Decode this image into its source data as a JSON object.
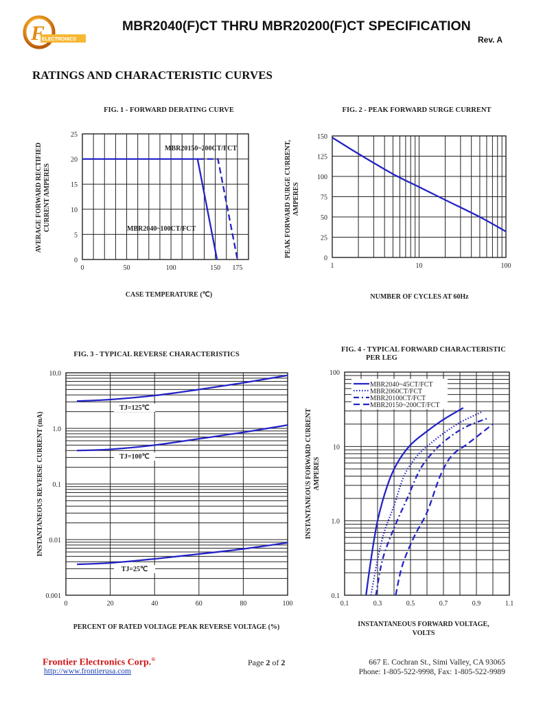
{
  "header": {
    "logo_text": "FRONTIER ELECTRONICS",
    "title": "MBR2040(F)CT THRU MBR20200(F)CT SPECIFICATION",
    "revision": "Rev. A"
  },
  "section_title": "RATINGS AND CHARACTERISTIC CURVES",
  "colors": {
    "curve": "#2323c8",
    "grid": "#222222",
    "company": "#d01818",
    "link": "#1a3fb0"
  },
  "chart_data": [
    {
      "id": "fig1",
      "type": "line",
      "title": "FIG. 1 - FORWARD DERATING CURVE",
      "xlabel": "CASE TEMPERATURE (℃)",
      "ylabel": [
        "AVERAGE FORWARD RECTIFIED",
        "CURRENT AMPERES"
      ],
      "xscale": "linear",
      "yscale": "linear",
      "xlim": [
        0,
        187.5
      ],
      "ylim": [
        0,
        25
      ],
      "xticks": [
        0,
        50,
        100,
        150,
        175
      ],
      "xtick_labels": [
        "0",
        "50",
        "100",
        "150",
        "175"
      ],
      "yticks": [
        0,
        5,
        10,
        15,
        20,
        25
      ],
      "ytick_labels": [
        "0",
        "5",
        "10",
        "15",
        "20",
        "25"
      ],
      "grid": true,
      "series": [
        {
          "name": "MBR2040~100CT/FCT",
          "style": "solid",
          "x": [
            0,
            130,
            152
          ],
          "y": [
            20,
            20,
            0
          ]
        },
        {
          "name": "MBR20150~200CT/FCT",
          "style": "dashed",
          "x": [
            130,
            153,
            175
          ],
          "y": [
            20,
            20,
            0
          ]
        }
      ]
    },
    {
      "id": "fig2",
      "type": "line",
      "title": "FIG. 2 - PEAK FORWARD SURGE CURRENT",
      "xlabel": "NUMBER OF CYCLES AT 60Hz",
      "ylabel": [
        "PEAK FORWARD SURGE CURRENT,",
        "AMPERES"
      ],
      "xscale": "log",
      "yscale": "linear",
      "xlim": [
        1,
        100
      ],
      "ylim": [
        0,
        150
      ],
      "xticks": [
        1,
        10,
        100
      ],
      "xtick_labels": [
        "1",
        "10",
        "100"
      ],
      "yticks": [
        0,
        25,
        50,
        75,
        100,
        125,
        150
      ],
      "ytick_labels": [
        "0",
        "25",
        "50",
        "75",
        "100",
        "125",
        "150"
      ],
      "grid": true,
      "series": [
        {
          "style": "solid",
          "x": [
            1,
            2,
            5,
            10,
            20,
            50,
            100
          ],
          "y": [
            148,
            128,
            103,
            87,
            71,
            50,
            32
          ]
        }
      ]
    },
    {
      "id": "fig3",
      "type": "line",
      "title": "FIG. 3 - TYPICAL REVERSE CHARACTERISTICS",
      "xlabel": "PERCENT OF RATED VOLTAGE PEAK REVERSE VOLTAGE (%)",
      "ylabel": [
        "INSTANTANEOUS REVERSE CURRENT (mA)"
      ],
      "xscale": "linear",
      "yscale": "log",
      "xlim": [
        0,
        100
      ],
      "ylim": [
        0.001,
        10
      ],
      "xticks": [
        0,
        20,
        40,
        60,
        80,
        100
      ],
      "xtick_labels": [
        "0",
        "20",
        "40",
        "60",
        "80",
        "100"
      ],
      "yticks": [
        0.001,
        0.01,
        0.1,
        1,
        10
      ],
      "ytick_labels": [
        "0.001",
        "0.01",
        "0.1",
        "1.0",
        "10.0"
      ],
      "grid": true,
      "series": [
        {
          "name": "TJ=125℃",
          "style": "solid",
          "x": [
            5,
            20,
            40,
            60,
            80,
            100
          ],
          "y": [
            3.1,
            3.3,
            3.9,
            5.0,
            6.6,
            9.0
          ]
        },
        {
          "name": "TJ=100℃",
          "style": "solid",
          "x": [
            5,
            20,
            40,
            60,
            80,
            100
          ],
          "y": [
            0.4,
            0.42,
            0.5,
            0.65,
            0.85,
            1.15
          ]
        },
        {
          "name": "TJ=25℃",
          "style": "solid",
          "x": [
            5,
            20,
            40,
            60,
            80,
            100
          ],
          "y": [
            0.0036,
            0.0038,
            0.0045,
            0.0055,
            0.0068,
            0.0088
          ]
        }
      ]
    },
    {
      "id": "fig4",
      "type": "line",
      "title": [
        "FIG. 4 - TYPICAL FORWARD CHARACTERISTIC",
        "PER LEG"
      ],
      "xlabel": [
        "INSTANTANEOUS FORWARD VOLTAGE,",
        "VOLTS"
      ],
      "ylabel": [
        "INSTANTANEOUS FORWARD CURRENT",
        "AMPERES"
      ],
      "xscale": "linear",
      "yscale": "log",
      "xlim": [
        0.1,
        1.1
      ],
      "ylim": [
        0.1,
        100
      ],
      "xticks": [
        0.1,
        0.3,
        0.5,
        0.7,
        0.9,
        1.1
      ],
      "xtick_labels": [
        "0.1",
        "0.3",
        "0.5",
        "0.7",
        "0.9",
        "1.1"
      ],
      "yticks": [
        0.1,
        1,
        10,
        100
      ],
      "ytick_labels": [
        "0.1",
        "1.0",
        "10",
        "100"
      ],
      "grid": true,
      "legend": "top-left",
      "series": [
        {
          "name": "MBR2040~45CT/FCT",
          "style": "solid",
          "x": [
            0.23,
            0.26,
            0.3,
            0.36,
            0.42,
            0.5,
            0.6,
            0.7,
            0.82
          ],
          "y": [
            0.1,
            0.3,
            1,
            3,
            6,
            10.5,
            16,
            23,
            33
          ]
        },
        {
          "name": "MBR2060CT/FCT",
          "style": "dotted",
          "x": [
            0.26,
            0.3,
            0.34,
            0.4,
            0.46,
            0.53,
            0.6,
            0.7,
            0.8,
            0.93
          ],
          "y": [
            0.1,
            0.3,
            0.7,
            1.6,
            4,
            7,
            10,
            15,
            21,
            29
          ]
        },
        {
          "name": "MBR20100CT/FCT",
          "style": "dashdot",
          "x": [
            0.29,
            0.33,
            0.4,
            0.48,
            0.56,
            0.65,
            0.75,
            0.85,
            0.97
          ],
          "y": [
            0.1,
            0.3,
            0.8,
            2,
            5,
            9,
            14,
            19,
            24
          ]
        },
        {
          "name": "MBR20150~200CT/FCT",
          "style": "dashed",
          "x": [
            0.41,
            0.45,
            0.52,
            0.6,
            0.68,
            0.75,
            0.85,
            1.0
          ],
          "y": [
            0.1,
            0.25,
            0.6,
            1.3,
            4,
            7.5,
            11,
            20
          ]
        }
      ]
    }
  ],
  "footer": {
    "company": "Frontier Electronics Corp.",
    "registered": "®",
    "url": "http://www.frontierusa.com",
    "page_prefix": "Page ",
    "page_current": "2",
    "page_mid": " of ",
    "page_total": "2",
    "address": "667 E. Cochran St., Simi Valley, CA 93065",
    "phone_fax": "Phone: 1-805-522-9998, Fax: 1-805-522-9989"
  }
}
